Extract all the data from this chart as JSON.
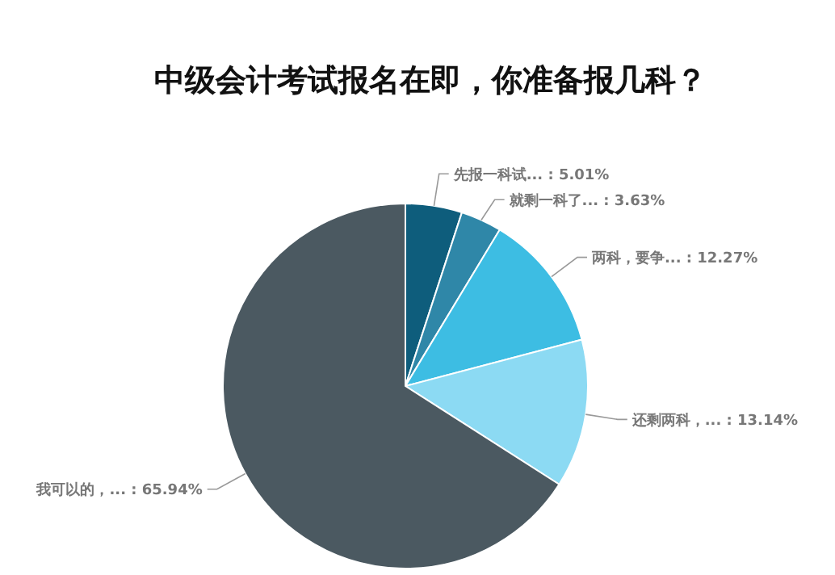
{
  "chart_data": {
    "type": "pie",
    "title": "中级会计考试报名在即，你准备报几科？",
    "categories": [
      "先报一科试...",
      "就剩一科了...",
      "两科，要争...",
      "还剩两科，...",
      "我可以的，..."
    ],
    "values": [
      5.01,
      3.63,
      12.27,
      13.14,
      65.94
    ],
    "value_labels": [
      "5.01%",
      "3.63%",
      "12.27%",
      "13.14%",
      "65.94%"
    ],
    "colors": [
      "#0e5d7c",
      "#2f87a8",
      "#3dbde3",
      "#8cdaf3",
      "#4b5961"
    ]
  }
}
